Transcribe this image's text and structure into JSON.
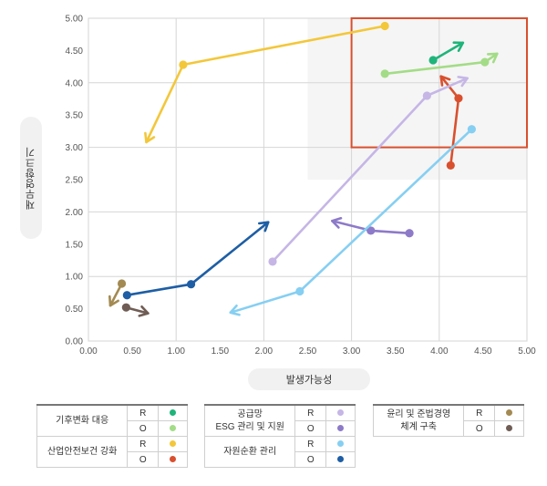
{
  "chart_data": {
    "type": "scatter",
    "title": "",
    "xlabel": "발생가능성",
    "ylabel": "재무영향크기",
    "xlim": [
      0,
      5
    ],
    "ylim": [
      0,
      5
    ],
    "x_ticks": [
      "0.00",
      "0.50",
      "1.00",
      "1.50",
      "2.00",
      "2.50",
      "3.00",
      "3.50",
      "4.00",
      "4.50",
      "5.00"
    ],
    "y_ticks": [
      "0.00",
      "0.50",
      "1.00",
      "1.50",
      "2.00",
      "2.50",
      "3.00",
      "3.50",
      "4.00",
      "4.50",
      "5.00"
    ],
    "grid": true,
    "highlight_region": {
      "x": [
        3.0,
        5.0
      ],
      "y": [
        3.0,
        5.0
      ],
      "color": "#d9502e"
    },
    "series": [
      {
        "name": "R",
        "group": "기후변화 대응",
        "color": "#1fb47a",
        "points": [
          [
            3.93,
            4.35
          ]
        ],
        "arrow_to": [
          4.27,
          4.62
        ]
      },
      {
        "name": "O",
        "group": "기후변화 대응",
        "color": "#a3dc86",
        "points": [
          [
            3.38,
            4.14
          ],
          [
            4.52,
            4.32
          ]
        ],
        "arrow_to": [
          4.66,
          4.45
        ]
      },
      {
        "name": "R",
        "group": "산업안전보건 강화",
        "color": "#f3c73a",
        "points": [
          [
            3.38,
            4.88
          ],
          [
            1.08,
            4.28
          ]
        ],
        "arrow_to": [
          0.66,
          3.08
        ]
      },
      {
        "name": "O",
        "group": "산업안전보건 강화",
        "color": "#d9502e",
        "points": [
          [
            4.13,
            2.72
          ],
          [
            4.22,
            3.76
          ]
        ],
        "arrow_to": [
          4.02,
          4.1
        ]
      },
      {
        "name": "R",
        "group": "공급망 ESG 관리 및 지원",
        "color": "#c5b6e6",
        "points": [
          [
            2.1,
            1.23
          ],
          [
            3.86,
            3.8
          ]
        ],
        "arrow_to": [
          4.32,
          4.07
        ]
      },
      {
        "name": "O",
        "group": "공급망 ESG 관리 및 지원",
        "color": "#8d7ac9",
        "points": [
          [
            3.66,
            1.67
          ],
          [
            3.22,
            1.71
          ]
        ],
        "arrow_to": [
          2.78,
          1.86
        ]
      },
      {
        "name": "R",
        "group": "자원순환 관리",
        "color": "#86cff2",
        "points": [
          [
            4.37,
            3.28
          ],
          [
            2.41,
            0.77
          ]
        ],
        "arrow_to": [
          1.62,
          0.44
        ]
      },
      {
        "name": "O",
        "group": "자원순환 관리",
        "color": "#1e5ea5",
        "points": [
          [
            0.44,
            0.71
          ],
          [
            1.17,
            0.88
          ]
        ],
        "arrow_to": [
          2.05,
          1.84
        ]
      },
      {
        "name": "R",
        "group": "윤리 및 준법경영 체계 구축",
        "color": "#a38a52",
        "points": [
          [
            0.38,
            0.89
          ]
        ],
        "arrow_to": [
          0.25,
          0.55
        ]
      },
      {
        "name": "O",
        "group": "윤리 및 준법경영 체계 구축",
        "color": "#6f5d55",
        "points": [
          [
            0.43,
            0.52
          ]
        ],
        "arrow_to": [
          0.68,
          0.43
        ]
      }
    ]
  },
  "legend": {
    "groups": [
      {
        "name": "기후변화 대응",
        "items": [
          {
            "code": "R",
            "color": "#1fb47a"
          },
          {
            "code": "O",
            "color": "#a3dc86"
          }
        ]
      },
      {
        "name": "산업안전보건 강화",
        "items": [
          {
            "code": "R",
            "color": "#f3c73a"
          },
          {
            "code": "O",
            "color": "#d9502e"
          }
        ]
      },
      {
        "name_lines": [
          "공급망",
          "ESG 관리 및 지원"
        ],
        "items": [
          {
            "code": "R",
            "color": "#c5b6e6"
          },
          {
            "code": "O",
            "color": "#8d7ac9"
          }
        ]
      },
      {
        "name": "자원순환 관리",
        "items": [
          {
            "code": "R",
            "color": "#86cff2"
          },
          {
            "code": "O",
            "color": "#1e5ea5"
          }
        ]
      },
      {
        "name_lines": [
          "윤리 및 준법경영",
          "체계 구축"
        ],
        "items": [
          {
            "code": "R",
            "color": "#a38a52"
          },
          {
            "code": "O",
            "color": "#6f5d55"
          }
        ]
      }
    ]
  }
}
